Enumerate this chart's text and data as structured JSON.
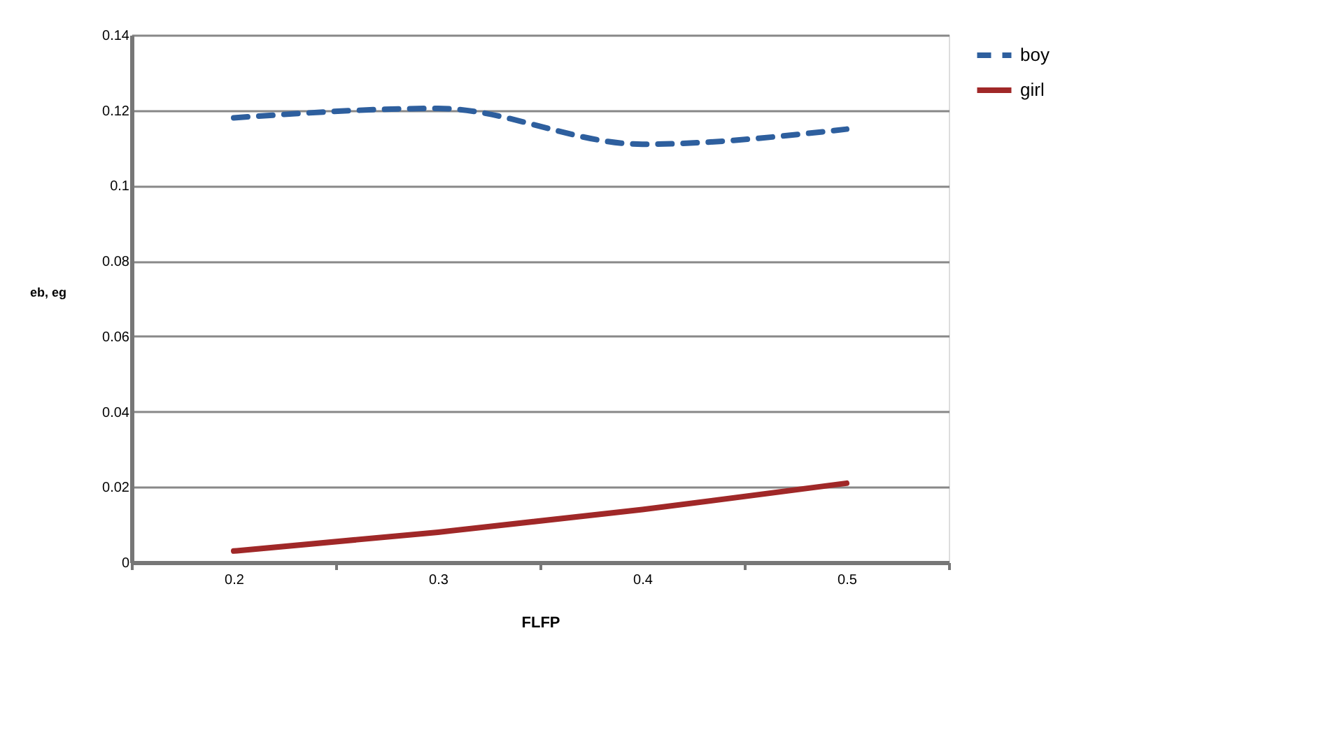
{
  "chart_data": {
    "type": "line",
    "xlabel": "FLFP",
    "ylabel": "eb, eg",
    "categories": [
      "0.2",
      "0.3",
      "0.4",
      "0.5"
    ],
    "series": [
      {
        "name": "boy",
        "color": "#2e5f9e",
        "line_style": "dashed",
        "values": [
          0.118,
          0.1205,
          0.111,
          0.115
        ]
      },
      {
        "name": "girl",
        "color": "#a02828",
        "line_style": "solid",
        "values": [
          0.003,
          0.008,
          0.014,
          0.021
        ]
      }
    ],
    "ylim": [
      0,
      0.14
    ],
    "yticks": [
      0,
      0.02,
      0.04,
      0.06,
      0.08,
      0.1,
      0.12,
      0.14
    ],
    "grid": "y",
    "legend": "right",
    "marker": "none"
  }
}
